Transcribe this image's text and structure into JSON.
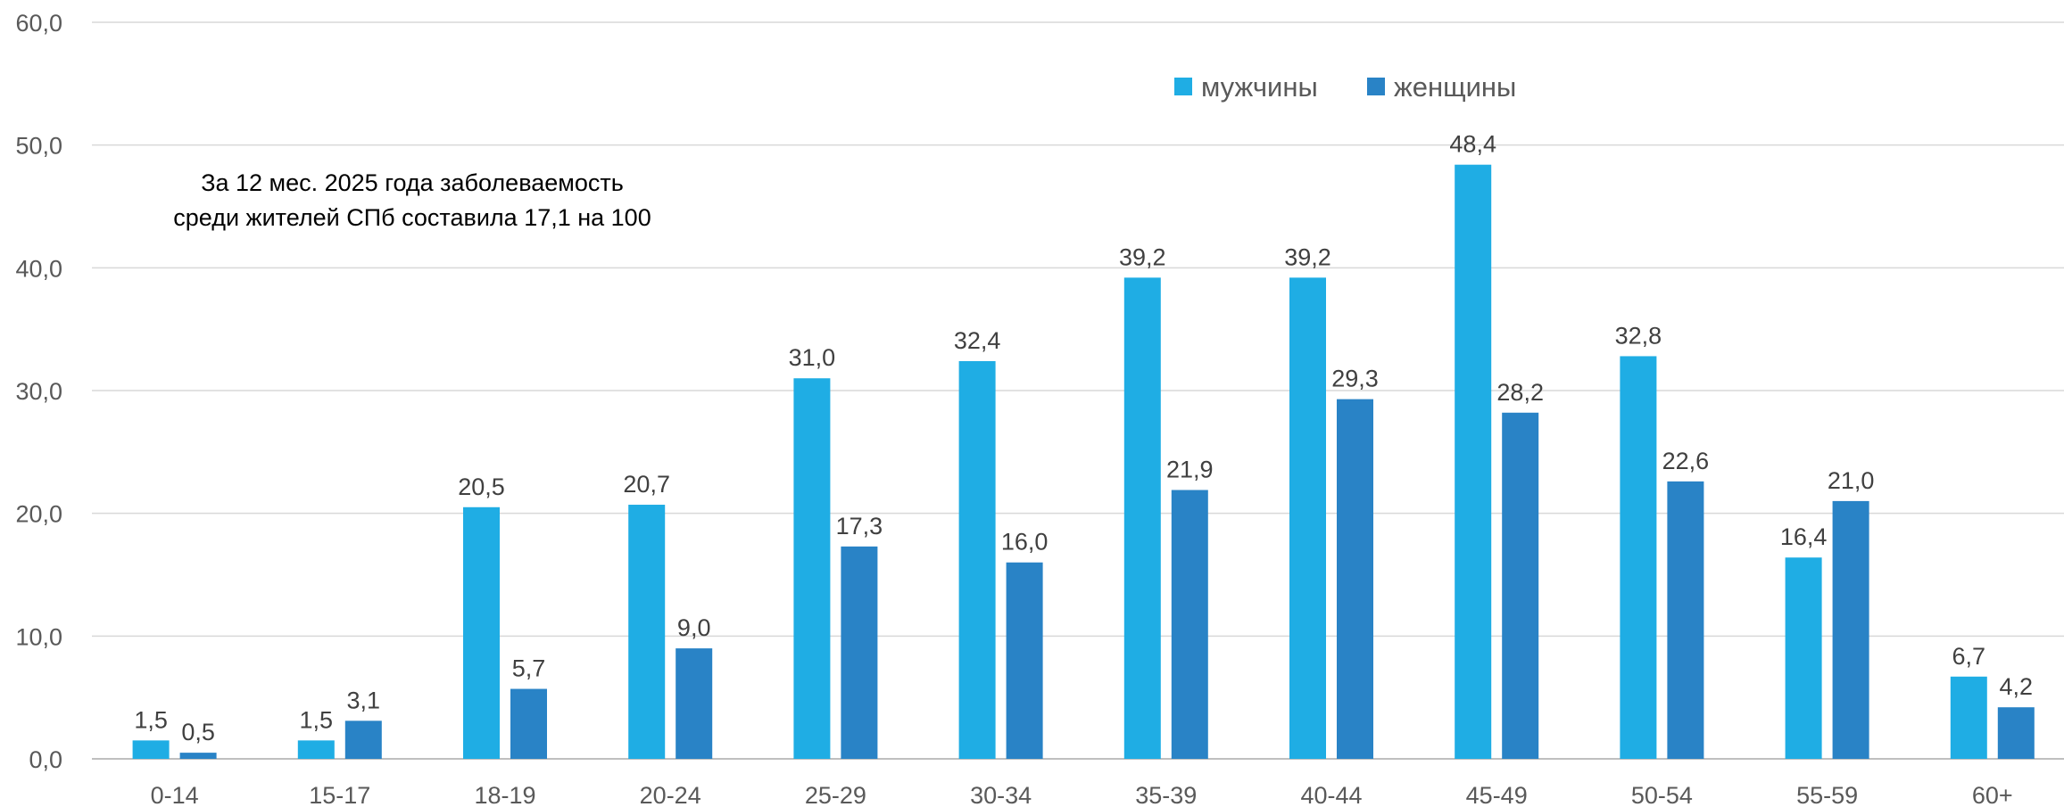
{
  "chart_data": {
    "type": "bar",
    "title": "",
    "xlabel": "",
    "ylabel": "",
    "ylim": [
      0,
      60
    ],
    "yticks": [
      "0,0",
      "10,0",
      "20,0",
      "30,0",
      "40,0",
      "50,0",
      "60,0"
    ],
    "grid": true,
    "legend_position": "top-right",
    "categories": [
      "0-14",
      "15-17",
      "18-19",
      "20-24",
      "25-29",
      "30-34",
      "35-39",
      "40-44",
      "45-49",
      "50-54",
      "55-59",
      "60+"
    ],
    "series": [
      {
        "name": "мужчины",
        "color": "#1FADE4",
        "values": [
          1.5,
          1.5,
          20.5,
          20.7,
          31.0,
          32.4,
          39.2,
          39.2,
          48.4,
          32.8,
          16.4,
          6.7
        ],
        "labels": [
          "1,5",
          "1,5",
          "20,5",
          "20,7",
          "31,0",
          "32,4",
          "39,2",
          "39,2",
          "48,4",
          "32,8",
          "16,4",
          "6,7"
        ]
      },
      {
        "name": "женщины",
        "color": "#2983C6",
        "values": [
          0.5,
          3.1,
          5.7,
          9.0,
          17.3,
          16.0,
          21.9,
          29.3,
          28.2,
          22.6,
          21.0,
          4.2
        ],
        "labels": [
          "0,5",
          "3,1",
          "5,7",
          "9,0",
          "17,3",
          "16,0",
          "21,9",
          "29,3",
          "28,2",
          "22,6",
          "21,0",
          "4,2"
        ]
      }
    ],
    "annotation": [
      "За 12 мес. 2025 года заболеваемость",
      "среди жителей СПб составила 17,1 на 100"
    ]
  }
}
